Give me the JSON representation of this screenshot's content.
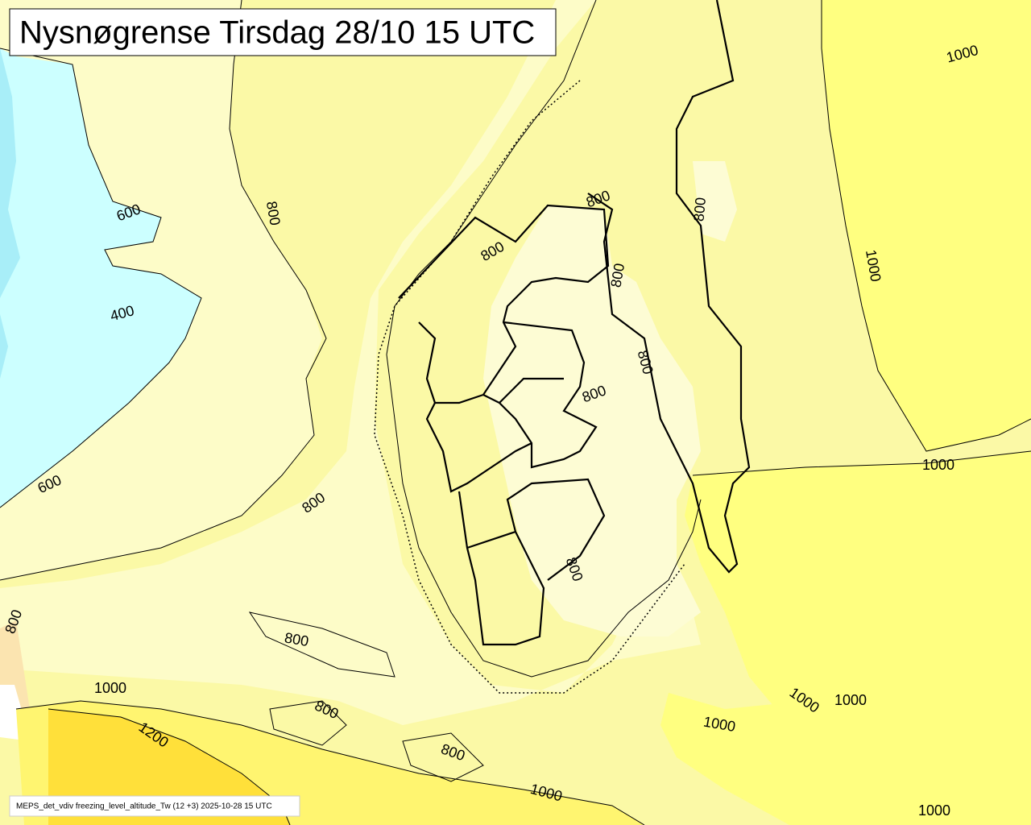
{
  "title": "Nysnøgrense Tirsdag 28/10 15 UTC",
  "footer": "MEPS_det_vdiv freezing_level_altitude_Tw (12 +3) 2025-10-28 15 UTC",
  "contour_labels": [
    "600",
    "800",
    "400",
    "600",
    "800",
    "800",
    "800",
    "1000",
    "1200",
    "800",
    "800",
    "1000",
    "1000",
    "1000",
    "800",
    "800",
    "800",
    "800",
    "800",
    "800",
    "800",
    "1000",
    "1000",
    "1000",
    "1000",
    "1000"
  ]
}
